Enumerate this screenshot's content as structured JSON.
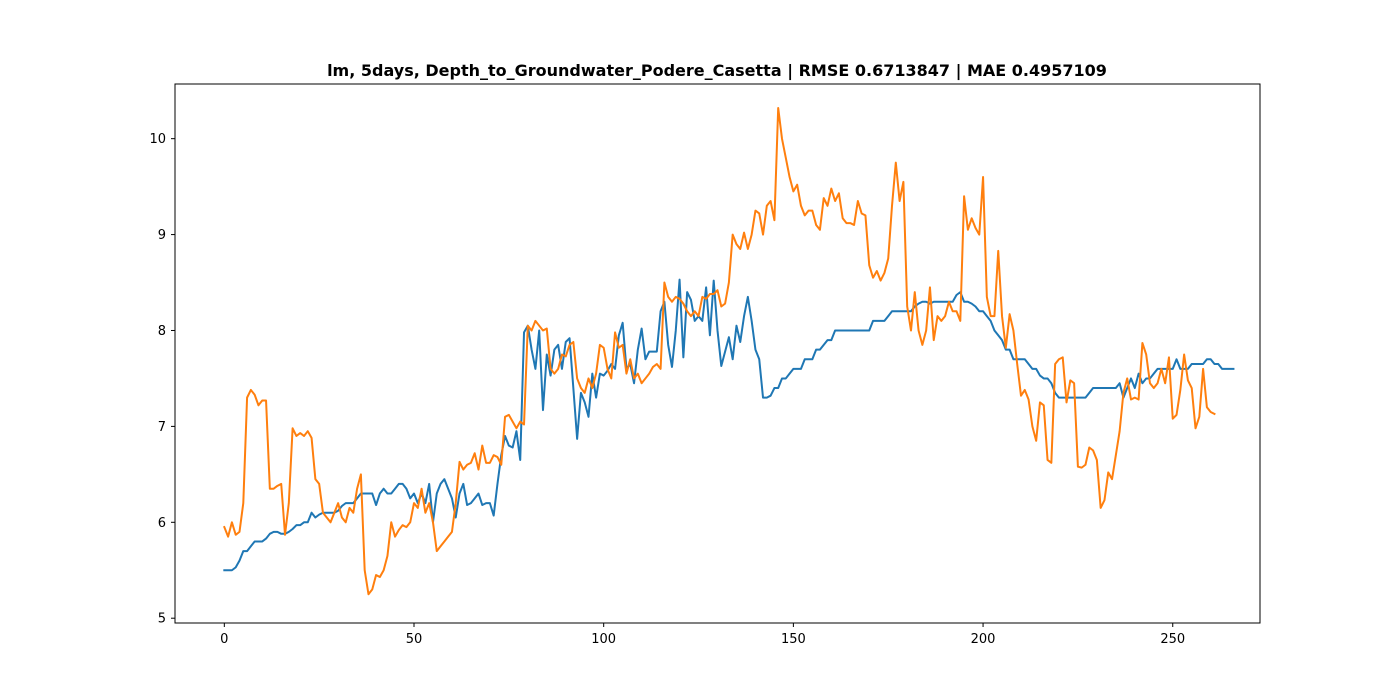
{
  "chart_data": {
    "type": "line",
    "title": "lm, 5days, Depth_to_Groundwater_Podere_Casetta | RMSE 0.6713847 | MAE 0.4957109",
    "xlabel": "",
    "ylabel": "",
    "xlim": [
      -13,
      273
    ],
    "ylim": [
      4.95,
      10.57
    ],
    "xticks": [
      0,
      50,
      100,
      150,
      200,
      250
    ],
    "yticks": [
      5,
      6,
      7,
      8,
      9,
      10
    ],
    "grid": false,
    "colors": [
      "#1f77b4",
      "#ff7f0e"
    ],
    "series": [
      {
        "name": "",
        "x_start": 0,
        "x_step": 1,
        "values": [
          5.5,
          5.5,
          5.5,
          5.53,
          5.6,
          5.7,
          5.7,
          5.75,
          5.8,
          5.8,
          5.8,
          5.83,
          5.88,
          5.9,
          5.9,
          5.88,
          5.88,
          5.9,
          5.93,
          5.97,
          5.97,
          6.0,
          6.0,
          6.1,
          6.05,
          6.08,
          6.1,
          6.1,
          6.1,
          6.1,
          6.12,
          6.17,
          6.2,
          6.2,
          6.2,
          6.25,
          6.3,
          6.3,
          6.3,
          6.3,
          6.18,
          6.3,
          6.35,
          6.3,
          6.3,
          6.35,
          6.4,
          6.4,
          6.35,
          6.25,
          6.3,
          6.2,
          6.3,
          6.2,
          6.4,
          6.0,
          6.3,
          6.4,
          6.45,
          6.35,
          6.25,
          6.05,
          6.3,
          6.4,
          6.18,
          6.2,
          6.25,
          6.3,
          6.18,
          6.2,
          6.2,
          6.07,
          6.4,
          6.7,
          6.9,
          6.8,
          6.78,
          6.95,
          6.65,
          7.98,
          8.05,
          7.8,
          7.6,
          8.0,
          7.17,
          7.75,
          7.53,
          7.8,
          7.85,
          7.6,
          7.88,
          7.92,
          7.4,
          6.87,
          7.35,
          7.25,
          7.1,
          7.55,
          7.3,
          7.55,
          7.53,
          7.58,
          7.65,
          7.6,
          7.95,
          8.08,
          7.6,
          7.65,
          7.45,
          7.8,
          8.02,
          7.7,
          7.78,
          7.78,
          7.78,
          8.2,
          8.3,
          7.85,
          7.62,
          8.0,
          8.53,
          7.72,
          8.4,
          8.32,
          8.1,
          8.15,
          8.1,
          8.45,
          7.95,
          8.52,
          8.0,
          7.63,
          7.78,
          7.93,
          7.7,
          8.05,
          7.88,
          8.15,
          8.35,
          8.1,
          7.8,
          7.7,
          7.3,
          7.3,
          7.32,
          7.4,
          7.4,
          7.5,
          7.5,
          7.55,
          7.6,
          7.6,
          7.6,
          7.7,
          7.7,
          7.7,
          7.8,
          7.8,
          7.85,
          7.9,
          7.9,
          8.0,
          8.0,
          8.0,
          8.0,
          8.0,
          8.0,
          8.0,
          8.0,
          8.0,
          8.0,
          8.1,
          8.1,
          8.1,
          8.1,
          8.15,
          8.2,
          8.2,
          8.2,
          8.2,
          8.2,
          8.2,
          8.25,
          8.28,
          8.3,
          8.3,
          8.28,
          8.3,
          8.3,
          8.3,
          8.3,
          8.3,
          8.3,
          8.37,
          8.4,
          8.3,
          8.3,
          8.28,
          8.25,
          8.2,
          8.2,
          8.15,
          8.1,
          8.0,
          7.95,
          7.9,
          7.8,
          7.8,
          7.7,
          7.7,
          7.7,
          7.7,
          7.65,
          7.6,
          7.6,
          7.53,
          7.5,
          7.5,
          7.45,
          7.35,
          7.3,
          7.3,
          7.3,
          7.3,
          7.3,
          7.3,
          7.3,
          7.3,
          7.35,
          7.4,
          7.4,
          7.4,
          7.4,
          7.4,
          7.4,
          7.4,
          7.45,
          7.3,
          7.4,
          7.5,
          7.4,
          7.55,
          7.45,
          7.5,
          7.5,
          7.55,
          7.6,
          7.6,
          7.6,
          7.6,
          7.6,
          7.7,
          7.6,
          7.6,
          7.6,
          7.65,
          7.65,
          7.65,
          7.65,
          7.7,
          7.7,
          7.65,
          7.65,
          7.6,
          7.6,
          7.6,
          7.6
        ]
      },
      {
        "name": "",
        "x_start": 0,
        "x_step": 1,
        "values": [
          5.95,
          5.85,
          6.0,
          5.87,
          5.9,
          6.2,
          7.3,
          7.38,
          7.33,
          7.22,
          7.27,
          7.27,
          6.35,
          6.35,
          6.38,
          6.4,
          5.87,
          6.2,
          6.98,
          6.9,
          6.93,
          6.9,
          6.95,
          6.88,
          6.45,
          6.4,
          6.1,
          6.05,
          6.0,
          6.1,
          6.2,
          6.05,
          6.0,
          6.15,
          6.1,
          6.35,
          6.5,
          5.5,
          5.25,
          5.3,
          5.45,
          5.43,
          5.5,
          5.65,
          6.0,
          5.85,
          5.92,
          5.97,
          5.95,
          6.0,
          6.2,
          6.15,
          6.35,
          6.1,
          6.2,
          6.0,
          5.7,
          5.75,
          5.8,
          5.85,
          5.9,
          6.2,
          6.63,
          6.55,
          6.6,
          6.62,
          6.72,
          6.55,
          6.8,
          6.62,
          6.62,
          6.7,
          6.68,
          6.6,
          7.1,
          7.12,
          7.05,
          6.98,
          7.05,
          7.02,
          8.05,
          8.0,
          8.1,
          8.05,
          8.0,
          8.02,
          7.6,
          7.55,
          7.6,
          7.75,
          7.73,
          7.85,
          7.88,
          7.5,
          7.4,
          7.35,
          7.5,
          7.4,
          7.55,
          7.85,
          7.82,
          7.6,
          7.5,
          7.98,
          7.82,
          7.85,
          7.55,
          7.7,
          7.5,
          7.55,
          7.45,
          7.5,
          7.55,
          7.62,
          7.65,
          7.6,
          8.5,
          8.35,
          8.3,
          8.35,
          8.33,
          8.28,
          8.2,
          8.15,
          8.2,
          8.15,
          8.35,
          8.33,
          8.38,
          8.38,
          8.42,
          8.25,
          8.28,
          8.5,
          9.0,
          8.9,
          8.85,
          9.02,
          8.85,
          9.0,
          9.25,
          9.22,
          9.0,
          9.3,
          9.35,
          9.15,
          10.32,
          10.0,
          9.8,
          9.6,
          9.45,
          9.52,
          9.3,
          9.2,
          9.25,
          9.25,
          9.1,
          9.05,
          9.38,
          9.3,
          9.48,
          9.35,
          9.43,
          9.17,
          9.12,
          9.12,
          9.1,
          9.35,
          9.22,
          9.2,
          8.68,
          8.55,
          8.62,
          8.52,
          8.6,
          8.75,
          9.3,
          9.75,
          9.35,
          9.55,
          8.25,
          8.0,
          8.4,
          8.0,
          7.85,
          8.0,
          8.45,
          7.9,
          8.15,
          8.1,
          8.15,
          8.3,
          8.2,
          8.2,
          8.1,
          9.4,
          9.05,
          9.17,
          9.07,
          9.0,
          9.6,
          8.35,
          8.15,
          8.15,
          8.83,
          8.15,
          7.82,
          8.17,
          8.0,
          7.65,
          7.32,
          7.38,
          7.28,
          7.0,
          6.85,
          7.25,
          7.22,
          6.65,
          6.62,
          7.65,
          7.7,
          7.72,
          7.25,
          7.48,
          7.45,
          6.58,
          6.57,
          6.6,
          6.78,
          6.75,
          6.65,
          6.15,
          6.23,
          6.52,
          6.45,
          6.7,
          6.95,
          7.35,
          7.5,
          7.28,
          7.3,
          7.28,
          7.87,
          7.75,
          7.45,
          7.4,
          7.45,
          7.6,
          7.45,
          7.72,
          7.08,
          7.12,
          7.38,
          7.75,
          7.48,
          7.4,
          6.98,
          7.1,
          7.6,
          7.2,
          7.15,
          7.13
        ]
      }
    ]
  }
}
